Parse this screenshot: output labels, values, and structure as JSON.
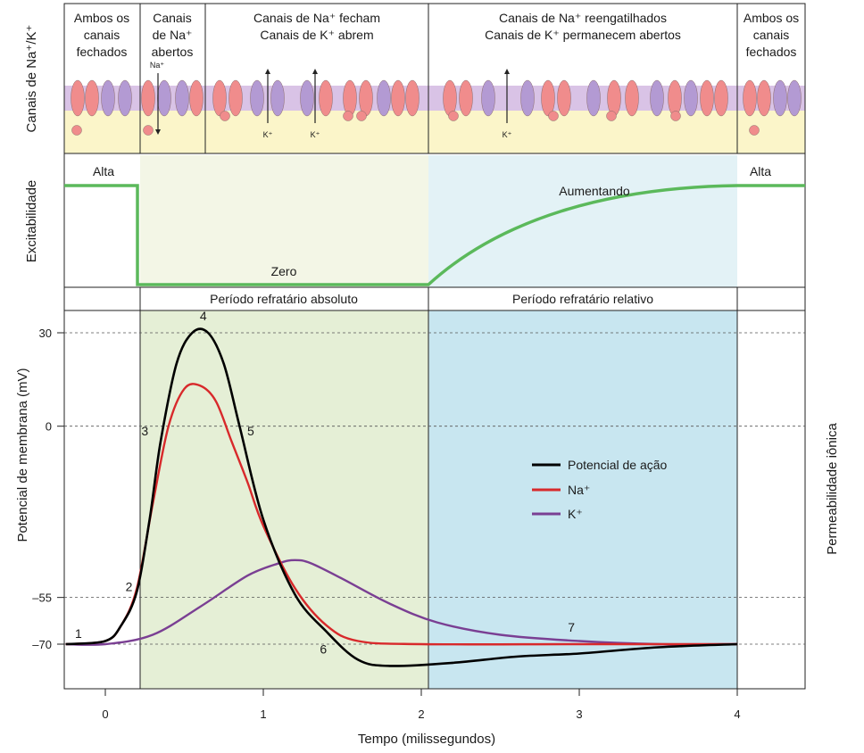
{
  "row_labels": {
    "channels": "Canais de Na⁺/K⁺",
    "excitability": "Excitabilidade",
    "membrane_potential": "Potencial de membrana (mV)",
    "permeability": "Permeabilidade iônica"
  },
  "phases": [
    {
      "line1": "Ambos os",
      "line2": "canais",
      "line3": "fechados"
    },
    {
      "line1": "Canais",
      "line2": "de Na⁺",
      "line3": "abertos"
    },
    {
      "line1": "Canais de Na⁺ fecham",
      "line2": "Canais de K⁺ abrem",
      "line3": ""
    },
    {
      "line1": "Canais de Na⁺ reengatilhados",
      "line2": "Canais de K⁺ permanecem abertos",
      "line3": ""
    },
    {
      "line1": "Ambos os",
      "line2": "canais",
      "line3": "fechados"
    }
  ],
  "ion_labels": {
    "na": "Na⁺",
    "k": "K⁺"
  },
  "excitability_labels": {
    "high_left": "Alta",
    "zero": "Zero",
    "increasing": "Aumentando",
    "high_right": "Alta"
  },
  "periods": {
    "absolute": "Período refratário absoluto",
    "relative": "Período refratário relativo"
  },
  "colors": {
    "action_potential": "#000000",
    "na": "#d8292b",
    "k": "#7a3f93",
    "excitability": "#5bb95b",
    "absolute_band": "#e5efd6",
    "relative_band": "#c8e6f0",
    "channel_na": "#f08c8c",
    "channel_k": "#b39ad3",
    "membrane": "#d9c3e6",
    "cytoplasm": "#fbf5c9"
  },
  "chart_data": {
    "type": "line",
    "xlabel": "Tempo (milissegundos)",
    "ylabel": "Potencial de membrana (mV)",
    "x_ticks": [
      "0",
      "1",
      "2",
      "3",
      "4"
    ],
    "y_ticks": [
      "30",
      "0",
      "–55",
      "–70"
    ],
    "xlim": [
      -0.25,
      4.45
    ],
    "ylim": [
      -87,
      37
    ],
    "absolute_refractory": [
      0.22,
      2.05
    ],
    "relative_refractory": [
      2.05,
      4.0
    ],
    "series": [
      {
        "name": "Potencial de ação",
        "x": [
          -0.25,
          0.0,
          0.1,
          0.2,
          0.28,
          0.35,
          0.45,
          0.55,
          0.65,
          0.75,
          0.85,
          1.0,
          1.2,
          1.4,
          1.6,
          1.8,
          2.2,
          2.6,
          3.0,
          3.5,
          4.0
        ],
        "y": [
          -70,
          -69,
          -64,
          -53,
          -30,
          -5,
          20,
          30,
          30,
          20,
          0,
          -30,
          -54,
          -66,
          -75,
          -77,
          -76,
          -74,
          -73,
          -71,
          -70
        ]
      },
      {
        "name": "Na⁺",
        "x": [
          -0.25,
          0.0,
          0.1,
          0.2,
          0.3,
          0.4,
          0.5,
          0.6,
          0.7,
          0.8,
          0.9,
          1.0,
          1.2,
          1.4,
          1.6,
          2.0,
          3.0,
          4.0
        ],
        "y": [
          -70,
          -69,
          -64,
          -52,
          -25,
          0,
          12,
          13,
          8,
          -5,
          -18,
          -32,
          -52,
          -64,
          -69,
          -70,
          -70,
          -70
        ]
      },
      {
        "name": "K⁺",
        "x": [
          -0.25,
          0.0,
          0.3,
          0.6,
          0.9,
          1.1,
          1.2,
          1.3,
          1.5,
          1.8,
          2.1,
          2.5,
          3.0,
          3.5,
          4.0
        ],
        "y": [
          -70,
          -70,
          -67,
          -58,
          -48,
          -44,
          -43,
          -44,
          -49,
          -57,
          -63,
          -67,
          -69,
          -70,
          -70
        ]
      }
    ],
    "point_labels": [
      {
        "label": "1",
        "x": -0.17,
        "y": -68
      },
      {
        "label": "2",
        "x": 0.15,
        "y": -53
      },
      {
        "label": "3",
        "x": 0.25,
        "y": -3
      },
      {
        "label": "4",
        "x": 0.62,
        "y": 34
      },
      {
        "label": "5",
        "x": 0.92,
        "y": -3
      },
      {
        "label": "6",
        "x": 1.38,
        "y": -73
      },
      {
        "label": "7",
        "x": 2.95,
        "y": -66
      }
    ]
  }
}
